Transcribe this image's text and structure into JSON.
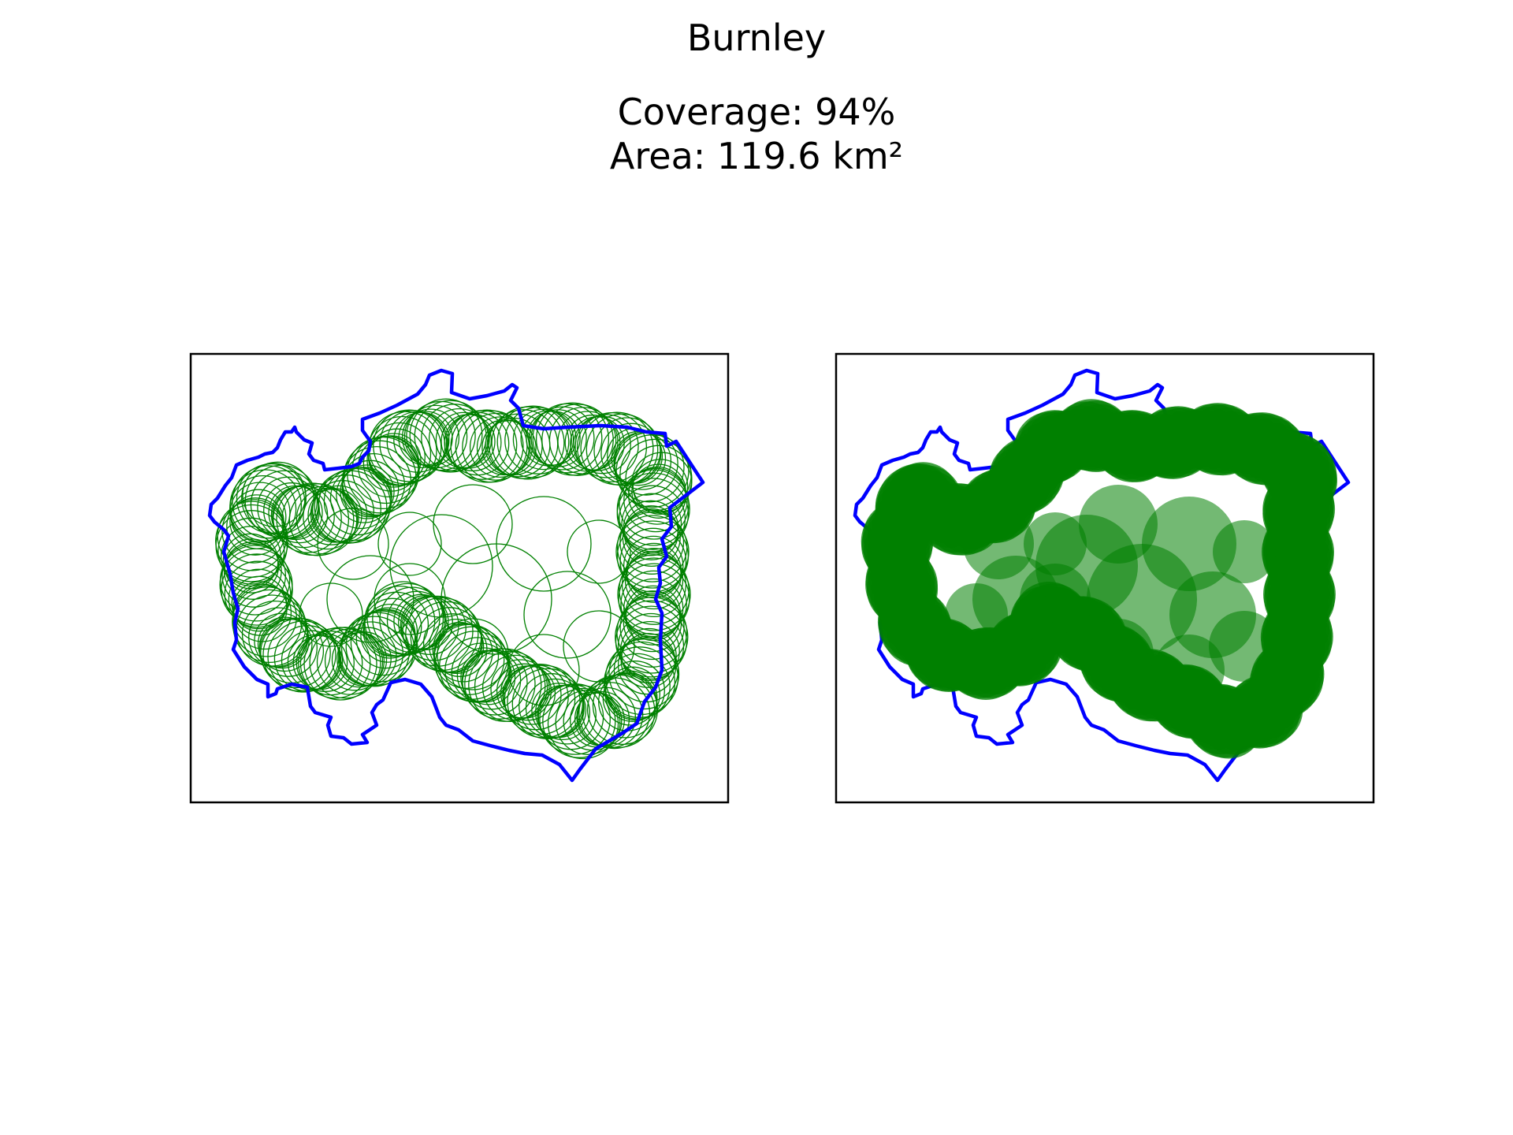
{
  "figure": {
    "title": "Burnley",
    "coverage_line": "Coverage: 94%",
    "area_line": "Area: 119.6 km²"
  },
  "colors": {
    "boundary": "#0000ff",
    "circles": "#008000",
    "frame": "#000000",
    "background": "#ffffff"
  },
  "panels": [
    {
      "name": "outline-circles",
      "fill": false
    },
    {
      "name": "filled-circles",
      "fill": true
    }
  ],
  "chart_data": {
    "type": "other",
    "title": "Burnley",
    "coverage_percent": 94,
    "area_km2": 119.6
  }
}
